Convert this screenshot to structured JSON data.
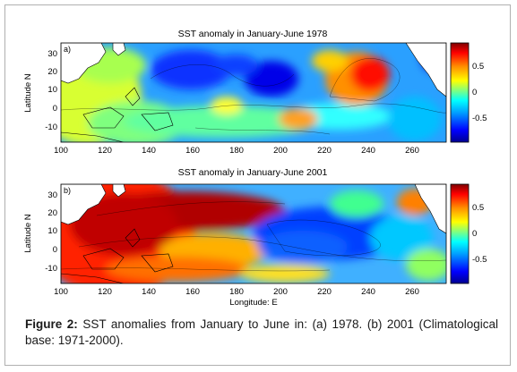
{
  "figure": {
    "panels": [
      {
        "id": "a",
        "panel_label": "a)",
        "title": "SST anomaly in January-June 1978",
        "ylabel": "Latitude N",
        "xlabel": "",
        "x_ticks": [
          "100",
          "120",
          "140",
          "160",
          "180",
          "200",
          "220",
          "240",
          "260"
        ],
        "y_ticks": [
          "30",
          "20",
          "10",
          "0",
          "-10"
        ],
        "colorbar_ticks": [
          "0.5",
          "0",
          "-0.5"
        ]
      },
      {
        "id": "b",
        "panel_label": "b)",
        "title": "SST anomaly in January-June 2001",
        "ylabel": "Latitude N",
        "xlabel": "Longitude: E",
        "x_ticks": [
          "100",
          "120",
          "140",
          "160",
          "180",
          "200",
          "220",
          "240",
          "260"
        ],
        "y_ticks": [
          "30",
          "20",
          "10",
          "0",
          "-10"
        ],
        "colorbar_ticks": [
          "0.5",
          "0",
          "-0.5"
        ]
      }
    ],
    "colormap": [
      "#000090",
      "#0000ff",
      "#00a0ff",
      "#00ffff",
      "#80ff80",
      "#ffff00",
      "#ff9000",
      "#ff0000",
      "#800000"
    ]
  },
  "caption": {
    "label": "Figure 2:",
    "text": " SST anomalies from January to June in: (a) 1978. (b) 2001 (Climatological base: 1971-2000)."
  }
}
